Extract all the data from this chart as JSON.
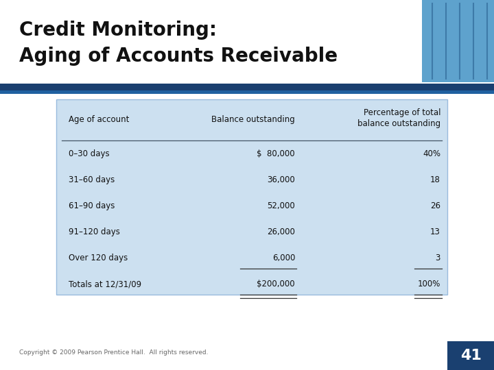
{
  "title_line1": "Credit Monitoring:",
  "title_line2": "Aging of Accounts Receivable",
  "title_color": "#111111",
  "title_fontsize": 20,
  "bg_color": "#ffffff",
  "bar1_color": "#1a3f6f",
  "bar2_color": "#2060a0",
  "table_bg_color": "#cce0f0",
  "table_border_color": "#99bbdd",
  "col_headers": [
    "Age of account",
    "Balance outstanding",
    "Percentage of total\nbalance outstanding"
  ],
  "rows": [
    [
      "0–30 days",
      "$  80,000",
      "40%"
    ],
    [
      "31–60 days",
      "36,000",
      "18"
    ],
    [
      "61–90 days",
      "52,000",
      "26"
    ],
    [
      "91–120 days",
      "26,000",
      "13"
    ],
    [
      "Over 120 days",
      "6,000",
      "3"
    ],
    [
      "Totals at 12/31/09",
      "$200,000",
      "100%"
    ]
  ],
  "footer_text": "Copyright © 2009 Pearson Prentice Hall.  All rights reserved.",
  "page_number": "41",
  "page_box_color": "#1a4070",
  "photo_color": "#6aaed6",
  "photo_color2": "#4488bb"
}
